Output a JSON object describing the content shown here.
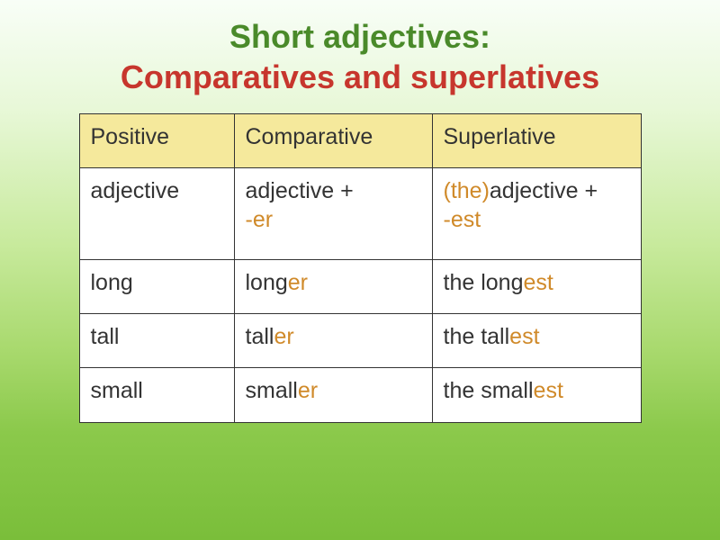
{
  "title": {
    "line1": "Short adjectives:",
    "line2": "Comparatives and superlatives",
    "colors": {
      "line1_accent": "#4a8a2a",
      "line2": "#c7362d"
    }
  },
  "table": {
    "header_bg": "#f5e99c",
    "body_bg": "#ffffff",
    "border_color": "#333333",
    "text_color": "#333333",
    "suffix_color": "#d08a2a",
    "article_color": "#d08a2a",
    "header": {
      "c1": "Positive",
      "c2": "Comparative",
      "c3": "Superlative"
    },
    "suffix_row": {
      "c1": "adjective",
      "c2_base": "adjective + ",
      "c2_suffix": "-er",
      "c3_article": "(the)",
      "c3_base": "adjective + ",
      "c3_suffix": "-est"
    },
    "rows": [
      {
        "base": "long",
        "comp_stem": "long",
        "comp_sfx": "er",
        "sup_pre": "the ",
        "sup_stem": "long",
        "sup_sfx": "est"
      },
      {
        "base": "tall",
        "comp_stem": "tall",
        "comp_sfx": "er",
        "sup_pre": "the ",
        "sup_stem": "tall",
        "sup_sfx": "est"
      },
      {
        "base": "small",
        "comp_stem": "small",
        "comp_sfx": "er",
        "sup_pre": "the ",
        "sup_stem": "small",
        "sup_sfx": "est"
      }
    ]
  }
}
